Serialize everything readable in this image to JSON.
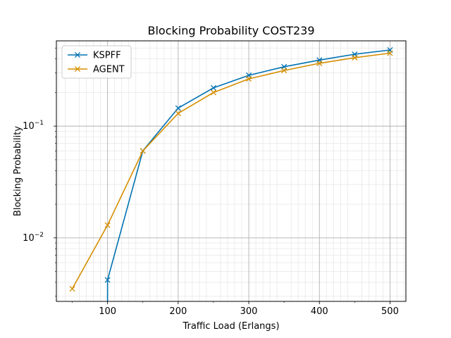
{
  "chart_data": {
    "type": "line",
    "title": "Blocking Probability COST239",
    "xlabel": "Traffic Load (Erlangs)",
    "ylabel": "Blocking Probability",
    "xlim": [
      27.5,
      522.5
    ],
    "ylim": [
      0.0027,
      0.58
    ],
    "yscale": "log",
    "grid": "on (major and minor)",
    "legend_position": "upper-left",
    "x_ticks": [
      100,
      200,
      300,
      400,
      500
    ],
    "x_tick_labels": [
      "100",
      "200",
      "300",
      "400",
      "500"
    ],
    "y_ticks": [
      0.01,
      0.1
    ],
    "y_tick_mantissa": [
      "10",
      "10"
    ],
    "y_tick_exponents": [
      "−2",
      "−1"
    ],
    "series": [
      {
        "name": "KSPFF",
        "color": "#0072b2",
        "marker": "x",
        "x": [
          100,
          150,
          200,
          250,
          300,
          350,
          400,
          450,
          500
        ],
        "y": [
          0.0042,
          0.06,
          0.145,
          0.22,
          0.285,
          0.34,
          0.39,
          0.44,
          0.48
        ],
        "drop_to_axis_at_x": 100
      },
      {
        "name": "AGENT",
        "color": "#d58e00",
        "marker": "x",
        "x": [
          50,
          100,
          150,
          200,
          250,
          300,
          350,
          400,
          450,
          500
        ],
        "y": [
          0.0035,
          0.013,
          0.06,
          0.13,
          0.2,
          0.265,
          0.315,
          0.365,
          0.41,
          0.45
        ]
      }
    ]
  }
}
